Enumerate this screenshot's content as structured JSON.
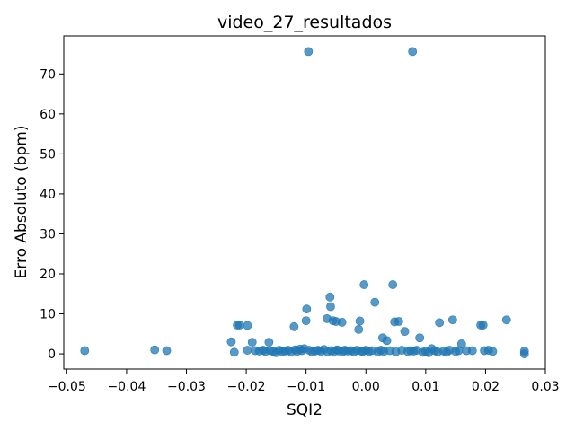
{
  "chart_data": {
    "type": "scatter",
    "title": "video_27_resultados",
    "xlabel": "SQI2",
    "ylabel": "Erro Absoluto (bpm)",
    "xlim": [
      -0.0505,
      0.03
    ],
    "ylim": [
      -3.8,
      79.5
    ],
    "xticks": [
      -0.05,
      -0.04,
      -0.03,
      -0.02,
      -0.01,
      0.0,
      0.01,
      0.02,
      0.03
    ],
    "xtick_labels": [
      "−0.05",
      "−0.04",
      "−0.03",
      "−0.02",
      "−0.01",
      "0.00",
      "0.01",
      "0.02",
      "0.03"
    ],
    "yticks": [
      0,
      10,
      20,
      30,
      40,
      50,
      60,
      70
    ],
    "ytick_labels": [
      "0",
      "10",
      "20",
      "30",
      "40",
      "50",
      "60",
      "70"
    ],
    "grid": false,
    "marker_color": "#1f77b4",
    "points": [
      [
        -0.047,
        0.8
      ],
      [
        -0.0353,
        1.0
      ],
      [
        -0.0333,
        0.8
      ],
      [
        -0.0225,
        3.0
      ],
      [
        -0.0215,
        7.2
      ],
      [
        -0.0211,
        7.2
      ],
      [
        -0.022,
        0.4
      ],
      [
        -0.0198,
        7.1
      ],
      [
        -0.0198,
        0.9
      ],
      [
        -0.019,
        2.9
      ],
      [
        -0.0185,
        0.8
      ],
      [
        -0.0178,
        0.7
      ],
      [
        -0.0172,
        0.9
      ],
      [
        -0.0168,
        0.6
      ],
      [
        -0.0162,
        2.9
      ],
      [
        -0.016,
        0.8
      ],
      [
        -0.0155,
        0.6
      ],
      [
        -0.015,
        0.3
      ],
      [
        -0.0145,
        0.9
      ],
      [
        -0.014,
        0.6
      ],
      [
        -0.0135,
        0.7
      ],
      [
        -0.013,
        0.9
      ],
      [
        -0.0125,
        0.5
      ],
      [
        -0.012,
        6.8
      ],
      [
        -0.0118,
        1.0
      ],
      [
        -0.0115,
        0.6
      ],
      [
        -0.011,
        1.2
      ],
      [
        -0.0107,
        0.8
      ],
      [
        -0.0103,
        1.3
      ],
      [
        -0.01,
        8.3
      ],
      [
        -0.0099,
        11.2
      ],
      [
        -0.0096,
        75.6
      ],
      [
        -0.0095,
        0.9
      ],
      [
        -0.009,
        0.5
      ],
      [
        -0.0085,
        0.7
      ],
      [
        -0.008,
        0.9
      ],
      [
        -0.0075,
        0.6
      ],
      [
        -0.007,
        1.1
      ],
      [
        -0.0065,
        8.8
      ],
      [
        -0.0064,
        0.5
      ],
      [
        -0.006,
        14.2
      ],
      [
        -0.0059,
        11.8
      ],
      [
        -0.0058,
        0.8
      ],
      [
        -0.0055,
        8.3
      ],
      [
        -0.0053,
        0.6
      ],
      [
        -0.005,
        8.1
      ],
      [
        -0.0048,
        1.0
      ],
      [
        -0.0045,
        0.7
      ],
      [
        -0.004,
        7.9
      ],
      [
        -0.0038,
        0.6
      ],
      [
        -0.0035,
        0.9
      ],
      [
        -0.003,
        0.7
      ],
      [
        -0.0025,
        0.8
      ],
      [
        -0.002,
        0.5
      ],
      [
        -0.0015,
        0.9
      ],
      [
        -0.0012,
        6.1
      ],
      [
        -0.001,
        8.2
      ],
      [
        -0.0008,
        0.7
      ],
      [
        -0.0005,
        0.6
      ],
      [
        -0.0003,
        17.3
      ],
      [
        0.0,
        0.9
      ],
      [
        0.0005,
        0.6
      ],
      [
        0.001,
        0.8
      ],
      [
        0.0015,
        12.9
      ],
      [
        0.002,
        0.5
      ],
      [
        0.0025,
        0.9
      ],
      [
        0.0028,
        4.0
      ],
      [
        0.003,
        0.6
      ],
      [
        0.0035,
        3.3
      ],
      [
        0.004,
        0.8
      ],
      [
        0.0045,
        17.3
      ],
      [
        0.0048,
        8.0
      ],
      [
        0.005,
        0.5
      ],
      [
        0.0055,
        8.1
      ],
      [
        0.006,
        0.9
      ],
      [
        0.0065,
        5.6
      ],
      [
        0.007,
        0.6
      ],
      [
        0.0075,
        0.8
      ],
      [
        0.0078,
        75.6
      ],
      [
        0.008,
        0.7
      ],
      [
        0.0085,
        0.9
      ],
      [
        0.009,
        4.0
      ],
      [
        0.0095,
        0.4
      ],
      [
        0.01,
        0.6
      ],
      [
        0.0105,
        0.3
      ],
      [
        0.011,
        1.3
      ],
      [
        0.0115,
        0.8
      ],
      [
        0.012,
        0.5
      ],
      [
        0.0123,
        7.8
      ],
      [
        0.013,
        0.7
      ],
      [
        0.0135,
        0.4
      ],
      [
        0.014,
        0.9
      ],
      [
        0.0145,
        8.5
      ],
      [
        0.015,
        0.6
      ],
      [
        0.0155,
        0.8
      ],
      [
        0.016,
        2.5
      ],
      [
        0.0168,
        0.8
      ],
      [
        0.0178,
        0.8
      ],
      [
        0.0192,
        7.2
      ],
      [
        0.0196,
        7.2
      ],
      [
        0.0198,
        0.8
      ],
      [
        0.0205,
        0.9
      ],
      [
        0.0212,
        0.6
      ],
      [
        0.0235,
        8.5
      ],
      [
        0.0265,
        0.7
      ],
      [
        0.0265,
        0.0
      ]
    ]
  }
}
